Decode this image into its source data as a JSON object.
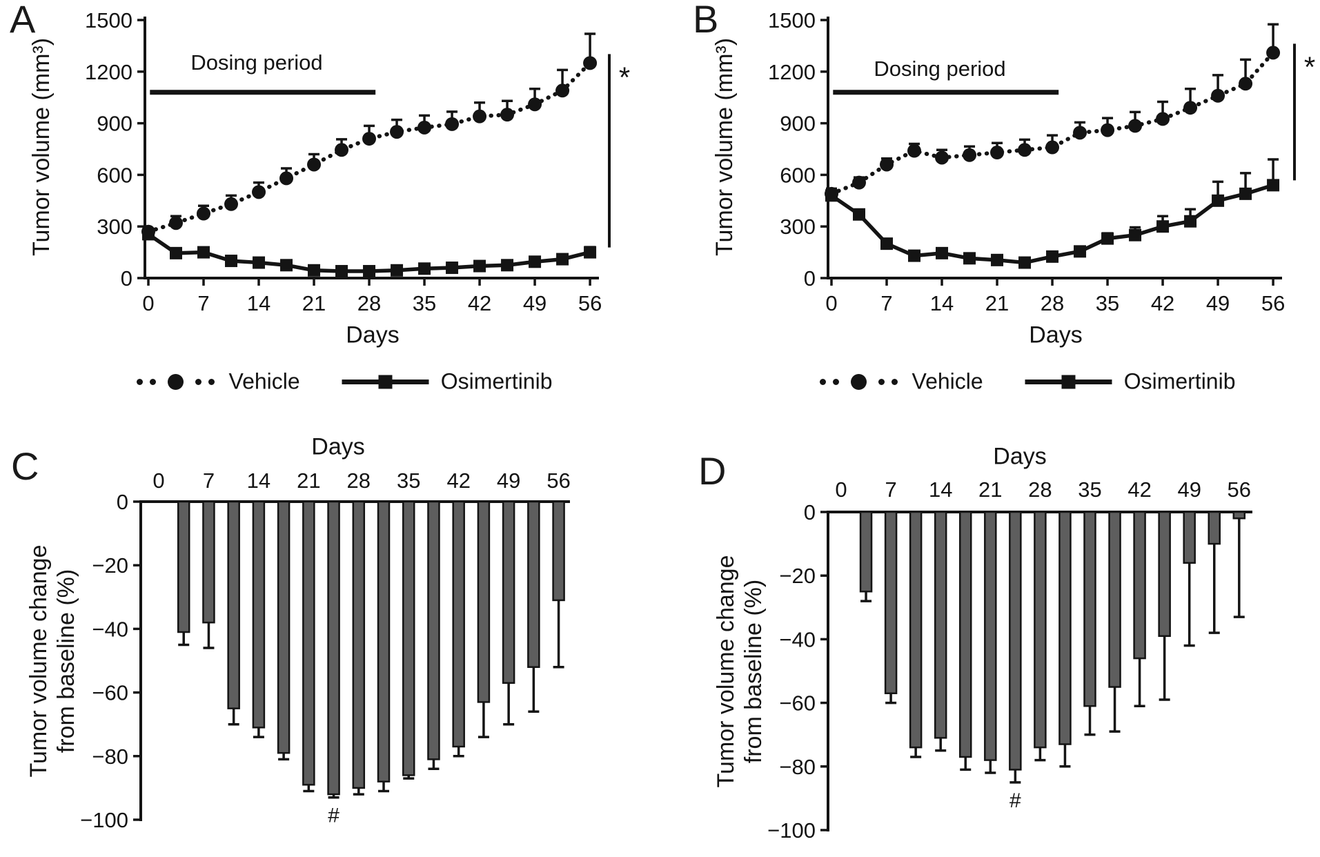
{
  "figure": {
    "background": "#ffffff",
    "ink": "#141414",
    "bar_fill": "#5e5e5e"
  },
  "legend": {
    "vehicle_label": "Vehicle",
    "osimertinib_label": "Osimertinib"
  },
  "panels": {
    "a": {
      "letter": "A",
      "ylabel": "Tumor volume (mm³)",
      "xlabel": "Days",
      "dosing_label": "Dosing period",
      "significance": "*"
    },
    "b": {
      "letter": "B",
      "ylabel": "Tumor volume (mm³)",
      "xlabel": "Days",
      "dosing_label": "Dosing period",
      "significance": "*"
    },
    "c": {
      "letter": "C",
      "ylabel_line1": "Tumor volume change",
      "ylabel_line2": "from baseline (%)",
      "xlabel": "Days",
      "significance": "#"
    },
    "d": {
      "letter": "D",
      "ylabel_line1": "Tumor volume change",
      "ylabel_line2": "from baseline (%)",
      "xlabel": "Days",
      "significance": "#"
    }
  },
  "chart_data": [
    {
      "id": "A",
      "type": "line",
      "title": "",
      "xlabel": "Days",
      "ylabel": "Tumor volume (mm3)",
      "xlim": [
        0,
        58
      ],
      "ylim": [
        0,
        1500
      ],
      "xticks": [
        0,
        7,
        14,
        21,
        28,
        35,
        42,
        49,
        56
      ],
      "yticks": [
        0,
        300,
        600,
        900,
        1200,
        1500
      ],
      "x": [
        0,
        3.5,
        7,
        10.5,
        14,
        17.5,
        21,
        24.5,
        28,
        31.5,
        35,
        38.5,
        42,
        45.5,
        49,
        52.5,
        56
      ],
      "series": [
        {
          "name": "Vehicle",
          "marker": "circle",
          "line_style": "dotted",
          "values": [
            270,
            320,
            375,
            430,
            500,
            580,
            660,
            745,
            810,
            850,
            875,
            895,
            940,
            950,
            1010,
            1090,
            1250
          ],
          "err_up": [
            0,
            40,
            45,
            50,
            55,
            58,
            60,
            62,
            75,
            70,
            70,
            72,
            80,
            80,
            90,
            120,
            170
          ]
        },
        {
          "name": "Osimertinib",
          "marker": "square",
          "line_style": "solid",
          "values": [
            255,
            145,
            150,
            100,
            90,
            75,
            45,
            40,
            40,
            45,
            55,
            60,
            70,
            75,
            95,
            110,
            150
          ],
          "err_up": [
            0,
            0,
            0,
            0,
            0,
            0,
            0,
            0,
            0,
            0,
            0,
            0,
            0,
            0,
            0,
            0,
            30
          ]
        }
      ],
      "dosing_period": {
        "label": "Dosing period",
        "x_start": 0.2,
        "x_end": 28.8,
        "y_value": 1080
      },
      "significance": "*"
    },
    {
      "id": "B",
      "type": "line",
      "title": "",
      "xlabel": "Days",
      "ylabel": "Tumor volume (mm3)",
      "xlim": [
        0,
        58
      ],
      "ylim": [
        0,
        1500
      ],
      "xticks": [
        0,
        7,
        14,
        21,
        28,
        35,
        42,
        49,
        56
      ],
      "yticks": [
        0,
        300,
        600,
        900,
        1200,
        1500
      ],
      "x": [
        0,
        3.5,
        7,
        10.5,
        14,
        17.5,
        21,
        24.5,
        28,
        31.5,
        35,
        38.5,
        42,
        45.5,
        49,
        52.5,
        56
      ],
      "series": [
        {
          "name": "Vehicle",
          "marker": "circle",
          "line_style": "dotted",
          "values": [
            490,
            555,
            660,
            740,
            700,
            715,
            730,
            745,
            760,
            845,
            860,
            885,
            925,
            990,
            1060,
            1130,
            1310
          ],
          "err_up": [
            30,
            30,
            35,
            40,
            45,
            50,
            55,
            60,
            70,
            60,
            70,
            80,
            100,
            110,
            120,
            140,
            165
          ]
        },
        {
          "name": "Osimertinib",
          "marker": "square",
          "line_style": "solid",
          "values": [
            480,
            370,
            200,
            130,
            145,
            115,
            105,
            90,
            125,
            155,
            230,
            250,
            300,
            330,
            450,
            490,
            540
          ],
          "err_up": [
            0,
            0,
            0,
            0,
            0,
            0,
            0,
            0,
            25,
            20,
            30,
            45,
            60,
            70,
            110,
            120,
            150
          ]
        }
      ],
      "dosing_period": {
        "label": "Dosing period",
        "x_start": 0.2,
        "x_end": 28.8,
        "y_value": 1080
      },
      "significance": "*"
    },
    {
      "id": "C",
      "type": "bar",
      "title": "",
      "xlabel": "Days",
      "ylabel": "Tumor volume change from baseline (%)",
      "xlim": [
        0,
        58
      ],
      "ylim": [
        -100,
        0
      ],
      "xticks": [
        0,
        7,
        14,
        21,
        28,
        35,
        42,
        49,
        56
      ],
      "yticks": [
        0,
        -20,
        -40,
        -60,
        -80,
        -100
      ],
      "x": [
        3.5,
        7,
        10.5,
        14,
        17.5,
        21,
        24.5,
        28,
        31.5,
        35,
        38.5,
        42,
        45.5,
        49,
        52.5,
        56
      ],
      "values": [
        -41,
        -38,
        -65,
        -71,
        -79,
        -89,
        -92,
        -90,
        -88,
        -86,
        -81,
        -77,
        -63,
        -57,
        -52,
        -31
      ],
      "err_down": [
        4,
        8,
        5,
        3,
        2,
        2,
        1,
        2,
        3,
        1,
        3,
        3,
        11,
        13,
        14,
        21
      ],
      "hash_x": 24.5,
      "significance": "#"
    },
    {
      "id": "D",
      "type": "bar",
      "title": "",
      "xlabel": "Days",
      "ylabel": "Tumor volume change from baseline (%)",
      "xlim": [
        0,
        58
      ],
      "ylim": [
        -100,
        0
      ],
      "xticks": [
        0,
        7,
        14,
        21,
        28,
        35,
        42,
        49,
        56
      ],
      "yticks": [
        0,
        -20,
        -40,
        -60,
        -80,
        -100
      ],
      "x": [
        3.5,
        7,
        10.5,
        14,
        17.5,
        21,
        24.5,
        28,
        31.5,
        35,
        38.5,
        42,
        45.5,
        49,
        52.5,
        56
      ],
      "values": [
        -25,
        -57,
        -74,
        -71,
        -77,
        -78,
        -81,
        -74,
        -73,
        -61,
        -55,
        -46,
        -39,
        -16,
        -10,
        -2
      ],
      "err_down": [
        3,
        3,
        3,
        4,
        4,
        4,
        4,
        4,
        7,
        9,
        14,
        15,
        20,
        26,
        28,
        31
      ],
      "hash_x": 24.5,
      "significance": "#"
    }
  ]
}
